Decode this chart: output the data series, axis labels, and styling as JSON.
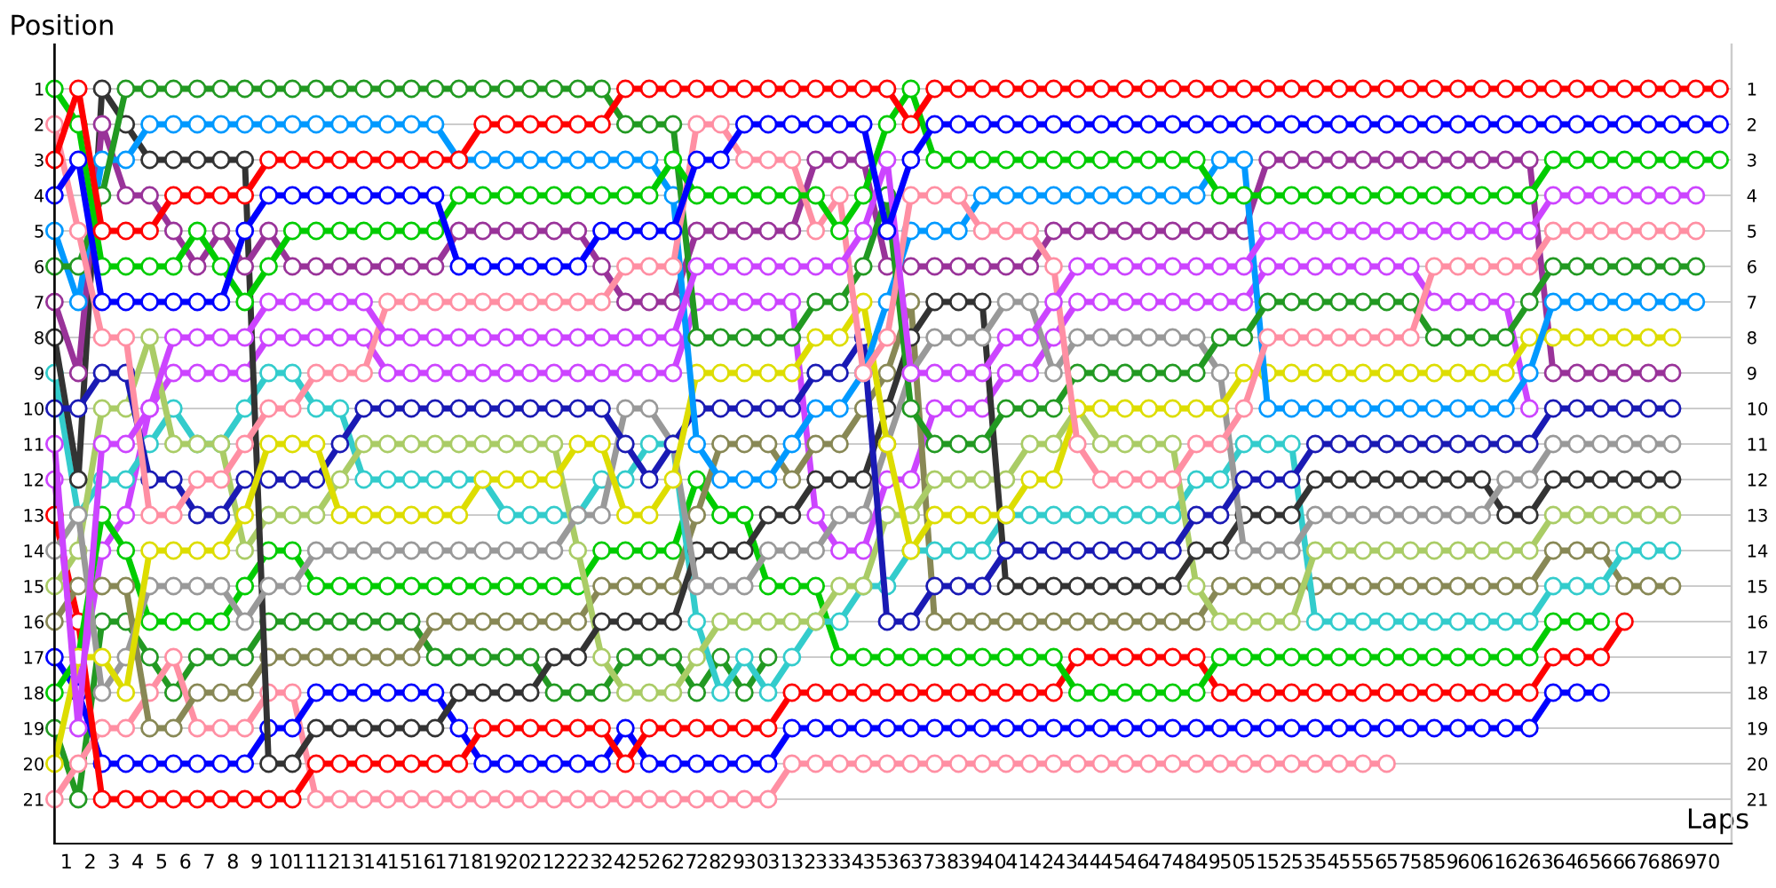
{
  "chart_data": {
    "type": "line",
    "xlabel": "Laps",
    "ylabel": "Position",
    "marker": "circle",
    "line_style": "solid",
    "grid": true,
    "x": [
      0,
      1,
      2,
      3,
      4,
      5,
      6,
      7,
      8,
      9,
      10,
      11,
      12,
      13,
      14,
      15,
      16,
      17,
      18,
      19,
      20,
      21,
      22,
      23,
      24,
      25,
      26,
      27,
      28,
      29,
      30,
      31,
      32,
      33,
      34,
      35,
      36,
      37,
      38,
      39,
      40,
      41,
      42,
      43,
      44,
      45,
      46,
      47,
      48,
      49,
      50,
      51,
      52,
      53,
      54,
      55,
      56,
      57,
      58,
      59,
      60,
      61,
      62,
      63,
      64,
      65,
      66,
      67,
      68,
      69,
      70
    ],
    "xlim": [
      0,
      70.5
    ],
    "xticks": [
      {
        "value": 0.5,
        "label": "1"
      },
      {
        "value": 1.5,
        "label": "2"
      },
      {
        "value": 2.5,
        "label": "3"
      },
      {
        "value": 3.5,
        "label": "4"
      },
      {
        "value": 4.5,
        "label": "5"
      },
      {
        "value": 5.5,
        "label": "6"
      },
      {
        "value": 6.5,
        "label": "7"
      },
      {
        "value": 7.5,
        "label": "8"
      },
      {
        "value": 8.5,
        "label": "9"
      },
      {
        "value": 9.5,
        "label": "10"
      },
      {
        "value": 10.5,
        "label": "11"
      },
      {
        "value": 11.5,
        "label": "12"
      },
      {
        "value": 12.5,
        "label": "13"
      },
      {
        "value": 13.5,
        "label": "14"
      },
      {
        "value": 14.5,
        "label": "15"
      },
      {
        "value": 15.5,
        "label": "16"
      },
      {
        "value": 16.5,
        "label": "17"
      },
      {
        "value": 17.5,
        "label": "18"
      },
      {
        "value": 18.5,
        "label": "19"
      },
      {
        "value": 19.5,
        "label": "20"
      },
      {
        "value": 20.5,
        "label": "21"
      },
      {
        "value": 21.5,
        "label": "22"
      },
      {
        "value": 22.5,
        "label": "23"
      },
      {
        "value": 23.5,
        "label": "24"
      },
      {
        "value": 24.5,
        "label": "25"
      },
      {
        "value": 25.5,
        "label": "26"
      },
      {
        "value": 26.5,
        "label": "27"
      },
      {
        "value": 27.5,
        "label": "28"
      },
      {
        "value": 28.5,
        "label": "29"
      },
      {
        "value": 29.5,
        "label": "30"
      },
      {
        "value": 30.5,
        "label": "31"
      },
      {
        "value": 31.5,
        "label": "32"
      },
      {
        "value": 32.5,
        "label": "33"
      },
      {
        "value": 33.5,
        "label": "34"
      },
      {
        "value": 34.5,
        "label": "35"
      },
      {
        "value": 35.5,
        "label": "36"
      },
      {
        "value": 36.5,
        "label": "37"
      },
      {
        "value": 37.5,
        "label": "38"
      },
      {
        "value": 38.5,
        "label": "39"
      },
      {
        "value": 39.5,
        "label": "40"
      },
      {
        "value": 40.5,
        "label": "41"
      },
      {
        "value": 41.5,
        "label": "42"
      },
      {
        "value": 42.5,
        "label": "43"
      },
      {
        "value": 43.5,
        "label": "44"
      },
      {
        "value": 44.5,
        "label": "45"
      },
      {
        "value": 45.5,
        "label": "46"
      },
      {
        "value": 46.5,
        "label": "47"
      },
      {
        "value": 47.5,
        "label": "48"
      },
      {
        "value": 48.5,
        "label": "49"
      },
      {
        "value": 49.5,
        "label": "50"
      },
      {
        "value": 50.5,
        "label": "51"
      },
      {
        "value": 51.5,
        "label": "52"
      },
      {
        "value": 52.5,
        "label": "53"
      },
      {
        "value": 53.5,
        "label": "54"
      },
      {
        "value": 54.5,
        "label": "55"
      },
      {
        "value": 55.5,
        "label": "56"
      },
      {
        "value": 56.5,
        "label": "57"
      },
      {
        "value": 57.5,
        "label": "58"
      },
      {
        "value": 58.5,
        "label": "59"
      },
      {
        "value": 59.5,
        "label": "60"
      },
      {
        "value": 60.5,
        "label": "61"
      },
      {
        "value": 61.5,
        "label": "62"
      },
      {
        "value": 62.5,
        "label": "63"
      },
      {
        "value": 63.5,
        "label": "64"
      },
      {
        "value": 64.5,
        "label": "65"
      },
      {
        "value": 65.5,
        "label": "66"
      },
      {
        "value": 66.5,
        "label": "67"
      },
      {
        "value": 67.5,
        "label": "68"
      },
      {
        "value": 68.5,
        "label": "69"
      },
      {
        "value": 69.5,
        "label": "70"
      }
    ],
    "ylim": [
      22.25,
      -0.25
    ],
    "yticks": [
      1,
      2,
      3,
      4,
      5,
      6,
      7,
      8,
      9,
      10,
      11,
      12,
      13,
      14,
      15,
      16,
      17,
      18,
      19,
      20,
      21
    ],
    "y2lim": [
      22.25,
      -0.25
    ],
    "y2ticks": [
      1,
      2,
      3,
      4,
      5,
      6,
      7,
      8,
      9,
      10,
      11,
      12,
      13,
      14,
      15,
      16,
      17,
      18,
      19,
      20,
      21
    ],
    "series": [
      {
        "color": "#ff0000",
        "values": [
          3,
          1,
          5,
          5,
          5,
          4,
          4,
          4,
          4,
          3,
          3,
          3,
          3,
          3,
          3,
          3,
          3,
          3,
          2,
          2,
          2,
          2,
          2,
          2,
          1,
          1,
          1,
          1,
          1,
          1,
          1,
          1,
          1,
          1,
          1,
          1,
          2,
          1,
          1,
          1,
          1,
          1,
          1,
          1,
          1,
          1,
          1,
          1,
          1,
          1,
          1,
          1,
          1,
          1,
          1,
          1,
          1,
          1,
          1,
          1,
          1,
          1,
          1,
          1,
          1,
          1,
          1,
          1,
          1,
          1,
          1
        ]
      },
      {
        "color": "#0000ff",
        "values": [
          4,
          3,
          7,
          7,
          7,
          7,
          7,
          7,
          5,
          4,
          4,
          4,
          4,
          4,
          4,
          4,
          4,
          6,
          6,
          6,
          6,
          6,
          6,
          5,
          5,
          5,
          5,
          3,
          3,
          2,
          2,
          2,
          2,
          2,
          2,
          5,
          3,
          2,
          2,
          2,
          2,
          2,
          2,
          2,
          2,
          2,
          2,
          2,
          2,
          2,
          2,
          2,
          2,
          2,
          2,
          2,
          2,
          2,
          2,
          2,
          2,
          2,
          2,
          2,
          2,
          2,
          2,
          2,
          2,
          2,
          2
        ]
      },
      {
        "color": "#00cc00",
        "values": [
          1,
          2,
          6,
          6,
          6,
          6,
          5,
          6,
          7,
          6,
          5,
          5,
          5,
          5,
          5,
          5,
          5,
          4,
          4,
          4,
          4,
          4,
          4,
          4,
          4,
          4,
          3,
          4,
          4,
          4,
          4,
          4,
          4,
          5,
          4,
          2,
          1,
          3,
          3,
          3,
          3,
          3,
          3,
          3,
          3,
          3,
          3,
          3,
          3,
          4,
          4,
          4,
          4,
          4,
          4,
          4,
          4,
          4,
          4,
          4,
          4,
          4,
          4,
          3,
          3,
          3,
          3,
          3,
          3,
          3,
          3
        ]
      },
      {
        "color": "#cc44ff",
        "values": [
          11,
          19,
          11,
          11,
          10,
          8,
          8,
          8,
          8,
          7,
          7,
          7,
          7,
          7,
          8,
          8,
          8,
          8,
          8,
          8,
          8,
          8,
          8,
          8,
          8,
          8,
          8,
          6,
          6,
          6,
          6,
          6,
          6,
          6,
          5,
          3,
          9,
          9,
          9,
          9,
          8,
          8,
          7,
          6,
          6,
          6,
          6,
          6,
          6,
          6,
          6,
          5,
          5,
          5,
          5,
          5,
          5,
          5,
          5,
          5,
          5,
          5,
          5,
          4,
          4,
          4,
          4,
          4,
          4,
          4,
          null
        ]
      },
      {
        "color": "#ff8fa3",
        "values": [
          2,
          5,
          8,
          8,
          13,
          13,
          12,
          12,
          11,
          10,
          10,
          9,
          9,
          9,
          7,
          7,
          7,
          7,
          7,
          7,
          7,
          7,
          7,
          7,
          6,
          6,
          6,
          2,
          2,
          3,
          3,
          3,
          5,
          4,
          9,
          8,
          4,
          4,
          4,
          5,
          5,
          5,
          6,
          11,
          12,
          12,
          12,
          12,
          11,
          11,
          10,
          8,
          8,
          8,
          8,
          8,
          8,
          8,
          6,
          6,
          6,
          6,
          6,
          5,
          5,
          5,
          5,
          5,
          5,
          5,
          null
        ]
      },
      {
        "color": "#229922",
        "values": [
          6,
          6,
          4,
          1,
          1,
          1,
          1,
          1,
          1,
          1,
          1,
          1,
          1,
          1,
          1,
          1,
          1,
          1,
          1,
          1,
          1,
          1,
          1,
          1,
          2,
          2,
          2,
          8,
          8,
          8,
          8,
          8,
          7,
          7,
          6,
          4,
          10,
          11,
          11,
          11,
          10,
          10,
          10,
          9,
          9,
          9,
          9,
          9,
          9,
          8,
          8,
          7,
          7,
          7,
          7,
          7,
          7,
          7,
          8,
          8,
          8,
          8,
          7,
          6,
          6,
          6,
          6,
          6,
          6,
          6,
          null
        ]
      },
      {
        "color": "#0099ff",
        "values": [
          5,
          7,
          3,
          3,
          2,
          2,
          2,
          2,
          2,
          2,
          2,
          2,
          2,
          2,
          2,
          2,
          2,
          3,
          3,
          3,
          3,
          3,
          3,
          3,
          3,
          3,
          4,
          11,
          12,
          12,
          12,
          11,
          10,
          10,
          9,
          7,
          5,
          5,
          5,
          4,
          4,
          4,
          4,
          4,
          4,
          4,
          4,
          4,
          4,
          3,
          3,
          10,
          10,
          10,
          10,
          10,
          10,
          10,
          10,
          10,
          10,
          10,
          9,
          7,
          7,
          7,
          7,
          7,
          7,
          7,
          null
        ]
      },
      {
        "color": "#dddd00",
        "values": [
          20,
          17,
          17,
          18,
          14,
          14,
          14,
          14,
          13,
          11,
          11,
          11,
          13,
          13,
          13,
          13,
          13,
          13,
          12,
          12,
          12,
          12,
          11,
          11,
          13,
          13,
          12,
          9,
          9,
          9,
          9,
          9,
          8,
          8,
          7,
          11,
          14,
          13,
          13,
          13,
          13,
          12,
          12,
          10,
          10,
          10,
          10,
          10,
          10,
          10,
          9,
          9,
          9,
          9,
          9,
          9,
          9,
          9,
          9,
          9,
          9,
          9,
          8,
          8,
          8,
          8,
          8,
          8,
          8,
          null,
          null
        ]
      },
      {
        "color": "#993399",
        "values": [
          7,
          9,
          2,
          4,
          4,
          5,
          6,
          5,
          6,
          5,
          6,
          6,
          6,
          6,
          6,
          6,
          6,
          5,
          5,
          5,
          5,
          5,
          5,
          6,
          7,
          7,
          7,
          5,
          5,
          5,
          5,
          5,
          3,
          3,
          3,
          6,
          6,
          6,
          6,
          6,
          6,
          6,
          5,
          5,
          5,
          5,
          5,
          5,
          5,
          5,
          5,
          3,
          3,
          3,
          3,
          3,
          3,
          3,
          3,
          3,
          3,
          3,
          3,
          9,
          9,
          9,
          9,
          9,
          9,
          null,
          null
        ]
      },
      {
        "color": "#1a1ab4",
        "values": [
          10,
          10,
          9,
          9,
          12,
          12,
          13,
          13,
          12,
          12,
          12,
          12,
          11,
          10,
          10,
          10,
          10,
          10,
          10,
          10,
          10,
          10,
          10,
          10,
          11,
          12,
          11,
          10,
          10,
          10,
          10,
          10,
          9,
          9,
          8,
          16,
          16,
          15,
          15,
          15,
          14,
          14,
          14,
          14,
          14,
          14,
          14,
          14,
          13,
          13,
          12,
          12,
          12,
          11,
          11,
          11,
          11,
          11,
          11,
          11,
          11,
          11,
          11,
          10,
          10,
          10,
          10,
          10,
          10,
          null,
          null
        ]
      },
      {
        "color": "#999999",
        "values": [
          14,
          13,
          18,
          17,
          15,
          15,
          15,
          15,
          16,
          15,
          15,
          14,
          14,
          14,
          14,
          14,
          14,
          14,
          14,
          14,
          14,
          14,
          13,
          13,
          10,
          10,
          11,
          15,
          15,
          15,
          14,
          14,
          14,
          13,
          13,
          11,
          9,
          8,
          8,
          8,
          7,
          7,
          9,
          8,
          8,
          8,
          8,
          8,
          8,
          9,
          14,
          14,
          14,
          13,
          13,
          13,
          13,
          13,
          13,
          13,
          13,
          12,
          12,
          11,
          11,
          11,
          11,
          11,
          11,
          null,
          null
        ]
      },
      {
        "color": "#333333",
        "values": [
          8,
          12,
          1,
          2,
          3,
          3,
          3,
          3,
          3,
          20,
          20,
          19,
          19,
          19,
          19,
          19,
          19,
          18,
          18,
          18,
          18,
          17,
          17,
          16,
          16,
          16,
          16,
          14,
          14,
          14,
          13,
          13,
          12,
          12,
          12,
          10,
          8,
          7,
          7,
          7,
          15,
          15,
          15,
          15,
          15,
          15,
          15,
          15,
          14,
          14,
          13,
          13,
          13,
          12,
          12,
          12,
          12,
          12,
          12,
          12,
          12,
          13,
          13,
          12,
          12,
          12,
          12,
          12,
          12,
          null,
          null
        ]
      },
      {
        "color": "#aacc66",
        "values": [
          15,
          14,
          10,
          10,
          8,
          11,
          11,
          11,
          14,
          13,
          13,
          13,
          12,
          11,
          11,
          11,
          11,
          11,
          11,
          11,
          11,
          11,
          14,
          17,
          18,
          18,
          18,
          17,
          16,
          16,
          16,
          16,
          16,
          15,
          15,
          13,
          13,
          12,
          12,
          12,
          12,
          11,
          11,
          10,
          11,
          11,
          11,
          11,
          15,
          16,
          16,
          16,
          16,
          14,
          14,
          14,
          14,
          14,
          14,
          14,
          14,
          14,
          14,
          13,
          13,
          13,
          13,
          13,
          13,
          null,
          null
        ]
      },
      {
        "color": "#33cccc",
        "values": [
          9,
          13,
          12,
          12,
          11,
          10,
          11,
          11,
          10,
          9,
          9,
          10,
          10,
          12,
          12,
          12,
          12,
          12,
          12,
          13,
          13,
          13,
          13,
          12,
          12,
          11,
          11,
          16,
          18,
          17,
          18,
          17,
          16,
          16,
          15,
          15,
          14,
          14,
          14,
          14,
          13,
          13,
          13,
          13,
          13,
          13,
          13,
          13,
          12,
          12,
          11,
          11,
          11,
          16,
          16,
          16,
          16,
          16,
          16,
          16,
          16,
          16,
          16,
          15,
          15,
          15,
          14,
          14,
          14,
          null,
          null
        ]
      },
      {
        "color": "#888855",
        "values": [
          16,
          15,
          15,
          15,
          19,
          19,
          18,
          18,
          18,
          17,
          17,
          17,
          17,
          17,
          17,
          17,
          16,
          16,
          16,
          16,
          16,
          16,
          16,
          15,
          15,
          15,
          15,
          13,
          11,
          11,
          11,
          12,
          11,
          11,
          10,
          9,
          7,
          16,
          16,
          16,
          16,
          16,
          16,
          16,
          16,
          16,
          16,
          16,
          16,
          15,
          15,
          15,
          15,
          15,
          15,
          15,
          15,
          15,
          15,
          15,
          15,
          15,
          15,
          14,
          14,
          14,
          15,
          15,
          15,
          null,
          null
        ]
      },
      {
        "color": "#00cc00",
        "values": [
          18,
          17,
          13,
          14,
          16,
          16,
          16,
          16,
          15,
          14,
          14,
          15,
          15,
          15,
          15,
          15,
          15,
          15,
          15,
          15,
          15,
          15,
          15,
          14,
          14,
          14,
          14,
          12,
          13,
          13,
          15,
          15,
          15,
          17,
          17,
          17,
          17,
          17,
          17,
          17,
          17,
          17,
          17,
          18,
          18,
          18,
          18,
          18,
          18,
          17,
          17,
          17,
          17,
          17,
          17,
          17,
          17,
          17,
          17,
          17,
          17,
          17,
          17,
          16,
          16,
          16,
          null,
          null,
          null,
          null,
          null
        ]
      },
      {
        "color": "#ff0000",
        "values": [
          13,
          16,
          21,
          21,
          21,
          21,
          21,
          21,
          21,
          21,
          21,
          20,
          20,
          20,
          20,
          20,
          20,
          20,
          19,
          19,
          19,
          19,
          19,
          19,
          20,
          19,
          19,
          19,
          19,
          19,
          19,
          18,
          18,
          18,
          18,
          18,
          18,
          18,
          18,
          18,
          18,
          18,
          18,
          17,
          17,
          17,
          17,
          17,
          17,
          18,
          18,
          18,
          18,
          18,
          18,
          18,
          18,
          18,
          18,
          18,
          18,
          18,
          18,
          17,
          17,
          17,
          16,
          null,
          null,
          null,
          null
        ]
      },
      {
        "color": "#0000ff",
        "values": [
          17,
          18,
          20,
          20,
          20,
          20,
          20,
          20,
          20,
          19,
          19,
          18,
          18,
          18,
          18,
          18,
          18,
          19,
          20,
          20,
          20,
          20,
          20,
          20,
          19,
          20,
          20,
          20,
          20,
          20,
          20,
          19,
          19,
          19,
          19,
          19,
          19,
          19,
          19,
          19,
          19,
          19,
          19,
          19,
          19,
          19,
          19,
          19,
          19,
          19,
          19,
          19,
          19,
          19,
          19,
          19,
          19,
          19,
          19,
          19,
          19,
          19,
          19,
          18,
          18,
          18,
          null,
          null,
          null,
          null,
          null
        ]
      },
      {
        "color": "#ff8fa3",
        "values": [
          21,
          20,
          19,
          19,
          18,
          17,
          19,
          19,
          19,
          18,
          18,
          21,
          21,
          21,
          21,
          21,
          21,
          21,
          21,
          21,
          21,
          21,
          21,
          21,
          21,
          21,
          21,
          21,
          21,
          21,
          21,
          20,
          20,
          20,
          20,
          20,
          20,
          20,
          20,
          20,
          20,
          20,
          20,
          20,
          20,
          20,
          20,
          20,
          20,
          20,
          20,
          20,
          20,
          20,
          20,
          20,
          20,
          null,
          null,
          null,
          null,
          null,
          null,
          null,
          null,
          null,
          null,
          null,
          null,
          null,
          null
        ]
      },
      {
        "color": "#cc44ff",
        "values": [
          12,
          18,
          14,
          13,
          10,
          9,
          9,
          9,
          9,
          8,
          8,
          8,
          8,
          8,
          9,
          9,
          9,
          9,
          9,
          9,
          9,
          9,
          9,
          9,
          9,
          9,
          9,
          7,
          7,
          7,
          7,
          7,
          13,
          14,
          14,
          12,
          12,
          10,
          10,
          10,
          9,
          9,
          8,
          7,
          7,
          7,
          7,
          7,
          7,
          7,
          7,
          6,
          6,
          6,
          6,
          6,
          6,
          6,
          7,
          7,
          7,
          7,
          10,
          null,
          null,
          null,
          null,
          null,
          null,
          null,
          null
        ]
      },
      {
        "color": "#229922",
        "values": [
          19,
          21,
          16,
          16,
          17,
          18,
          17,
          17,
          17,
          16,
          16,
          16,
          16,
          16,
          16,
          16,
          17,
          17,
          17,
          17,
          17,
          18,
          18,
          18,
          17,
          17,
          17,
          18,
          17,
          18,
          17,
          null,
          null,
          null,
          null,
          null,
          null,
          null,
          null,
          null,
          null,
          null,
          null,
          null,
          null,
          null,
          null,
          null,
          null,
          null,
          null,
          null,
          null,
          null,
          null,
          null,
          null,
          null,
          null,
          null,
          null,
          null,
          null,
          null,
          null,
          null,
          null,
          null,
          null,
          null,
          null
        ]
      }
    ]
  }
}
